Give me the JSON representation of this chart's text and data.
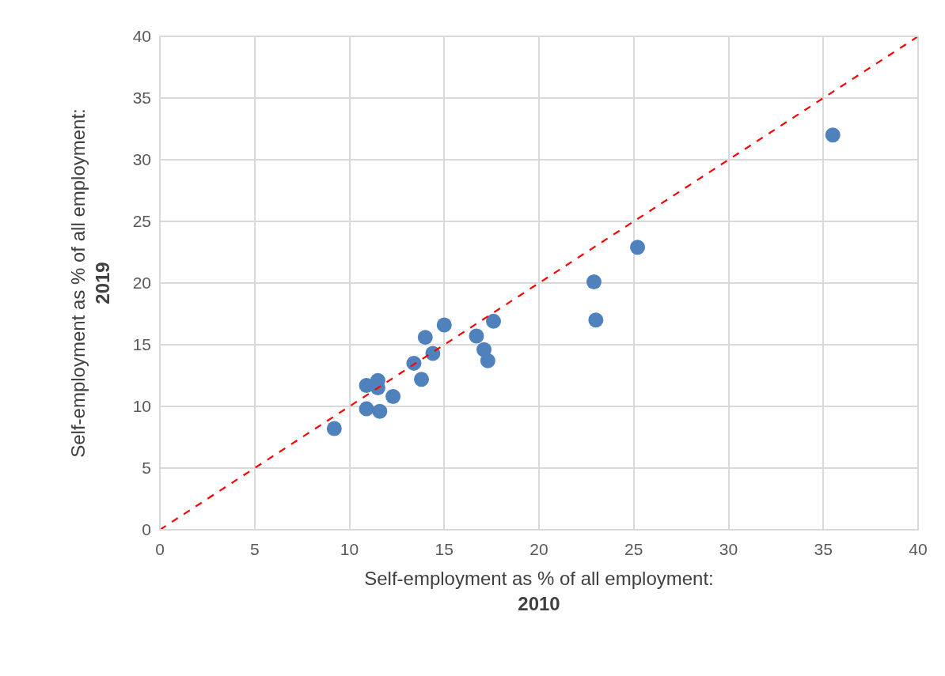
{
  "chart_data": {
    "type": "scatter",
    "xlabel": "Self-employment as % of all employment:\n2010",
    "ylabel": "Self-employment as % of all employment:\n2019",
    "series": [
      {
        "color": "#4f81bd",
        "marker": "circle",
        "x": [
          9.2,
          10.9,
          11.5,
          11.5,
          12.3,
          10.9,
          11.6,
          13.4,
          13.8,
          14.0,
          14.4,
          15.0,
          16.7,
          17.1,
          17.3,
          17.6,
          25.2,
          22.9,
          23.0,
          35.5
        ],
        "values": [
          8.2,
          11.7,
          12.1,
          11.5,
          10.8,
          9.8,
          9.6,
          13.5,
          12.2,
          15.6,
          14.3,
          16.6,
          15.7,
          14.6,
          13.7,
          16.9,
          22.9,
          20.1,
          17.0,
          32.0
        ]
      },
      {
        "type": "line",
        "color": "#ff0000",
        "line_style": "dashed",
        "marker": "none",
        "x": [
          0,
          40
        ],
        "values": [
          0,
          40
        ]
      }
    ],
    "xlim": [
      0,
      40
    ],
    "ylim": [
      0,
      40
    ],
    "xticks": [
      0,
      5,
      10,
      15,
      20,
      25,
      30,
      35,
      40
    ],
    "yticks": [
      0,
      5,
      10,
      15,
      20,
      25,
      30,
      35,
      40
    ],
    "grid": true
  }
}
